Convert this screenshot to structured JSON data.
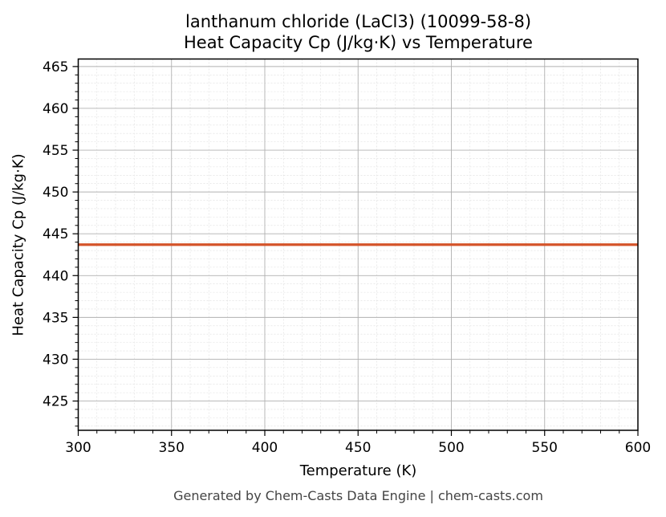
{
  "chart_data": {
    "type": "line",
    "title": "lanthanum chloride (LaCl3) (10099-58-8)",
    "subtitle": "Heat Capacity Cp (J/kg·K) vs Temperature",
    "xlabel": "Temperature (K)",
    "ylabel": "Heat Capacity Cp (J/kg·K)",
    "xlim": [
      300,
      600
    ],
    "ylim": [
      421.5,
      465.9
    ],
    "xticks": [
      300,
      350,
      400,
      450,
      500,
      550,
      600
    ],
    "yticks": [
      425,
      430,
      435,
      440,
      445,
      450,
      455,
      460,
      465
    ],
    "grid": true,
    "minor_grid": true,
    "legend": null,
    "series": [
      {
        "name": "Heat Capacity Cp",
        "color": "#d4542a",
        "x": [
          300,
          350,
          400,
          450,
          500,
          550,
          600
        ],
        "y": [
          443.7,
          443.7,
          443.7,
          443.7,
          443.7,
          443.7,
          443.7
        ]
      }
    ]
  },
  "header": {
    "title_line1": "lanthanum chloride (LaCl3) (10099-58-8)",
    "title_line2": "Heat Capacity Cp (J/kg·K) vs Temperature"
  },
  "axes": {
    "xlabel": "Temperature (K)",
    "ylabel": "Heat Capacity Cp (J/kg·K)"
  },
  "footer": {
    "text": "Generated by Chem-Casts Data Engine | chem-casts.com"
  },
  "colors": {
    "line": "#d4542a",
    "major_grid": "#b0b0b0",
    "minor_grid": "#dddddd",
    "spine": "#000000",
    "footer_text": "#444444"
  }
}
